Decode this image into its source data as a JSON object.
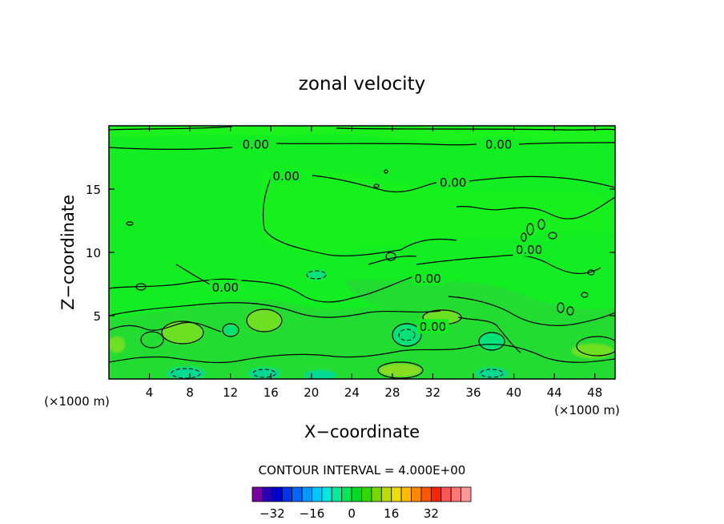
{
  "chart_data": {
    "type": "heatmap",
    "title": "zonal velocity",
    "xlabel": "X−coordinate",
    "ylabel": "Z−coordinate",
    "x_unit": "(×1000 m)",
    "y_unit": "(×1000 m)",
    "xlim": [
      0,
      50
    ],
    "ylim": [
      0,
      20
    ],
    "x_ticks": [
      "4",
      "8",
      "12",
      "16",
      "20",
      "24",
      "28",
      "32",
      "36",
      "40",
      "44",
      "48"
    ],
    "y_ticks": [
      "5",
      "10",
      "15"
    ],
    "contour_interval_text": "CONTOUR INTERVAL = 4.000E+00",
    "contour_labels": [
      {
        "text": "0.00",
        "x": 14.5,
        "y": 18.5
      },
      {
        "text": "0.00",
        "x": 38.5,
        "y": 18.5
      },
      {
        "text": "0.00",
        "x": 17.5,
        "y": 16.0
      },
      {
        "text": "0.00",
        "x": 34.0,
        "y": 15.5
      },
      {
        "text": "0.00",
        "x": 41.5,
        "y": 10.2
      },
      {
        "text": "0.00",
        "x": 31.5,
        "y": 7.9
      },
      {
        "text": "0.00",
        "x": 11.5,
        "y": 7.2
      },
      {
        "text": "0.00",
        "x": 32.0,
        "y": 4.1
      }
    ],
    "colorbar": {
      "colors": [
        "#7a00a0",
        "#2a00b4",
        "#0000d0",
        "#0033ee",
        "#0066ff",
        "#0099ff",
        "#00c8ff",
        "#00e8e0",
        "#00ee99",
        "#00e855",
        "#00dd22",
        "#33d800",
        "#77d800",
        "#bbdd00",
        "#eedd00",
        "#ffbb00",
        "#ff8800",
        "#ff5500",
        "#ff2200",
        "#ff5555",
        "#ff7777",
        "#ff9999"
      ],
      "tick_labels": [
        "−32",
        "−16",
        "0",
        "16",
        "32"
      ],
      "tick_values": [
        -32,
        -16,
        0,
        16,
        32
      ],
      "min": -40,
      "max": 48
    }
  }
}
